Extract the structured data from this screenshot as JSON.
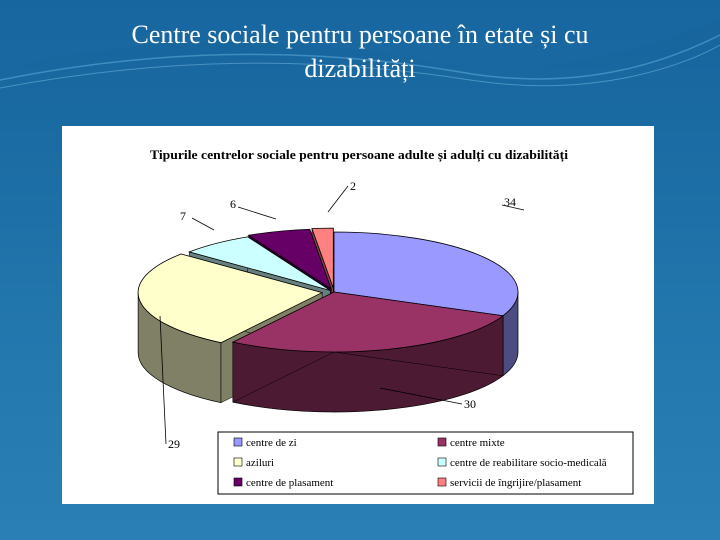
{
  "slide": {
    "title_line1": "Centre sociale pentru persoane în etate și cu",
    "title_line2": "dizabilități"
  },
  "chart_data": {
    "type": "pie",
    "title": "Tipurile centrelor sociale pentru persoane adulte și adulți cu dizabilități",
    "categories": [
      "centre de zi",
      "centre mixte",
      "aziluri",
      "centre de reabilitare socio-medicală",
      "centre de plasament",
      "servicii de îngrijire/plasament"
    ],
    "values": [
      34,
      30,
      29,
      7,
      6,
      2
    ],
    "colors": [
      "#9999ff",
      "#993366",
      "#ffffcc",
      "#ccffff",
      "#660066",
      "#ff8080"
    ],
    "side_colors": [
      "#4c4c80",
      "#4d1a33",
      "#808066",
      "#668080",
      "#330033",
      "#804040"
    ],
    "legend_position": "bottom-right",
    "three_d": true
  }
}
